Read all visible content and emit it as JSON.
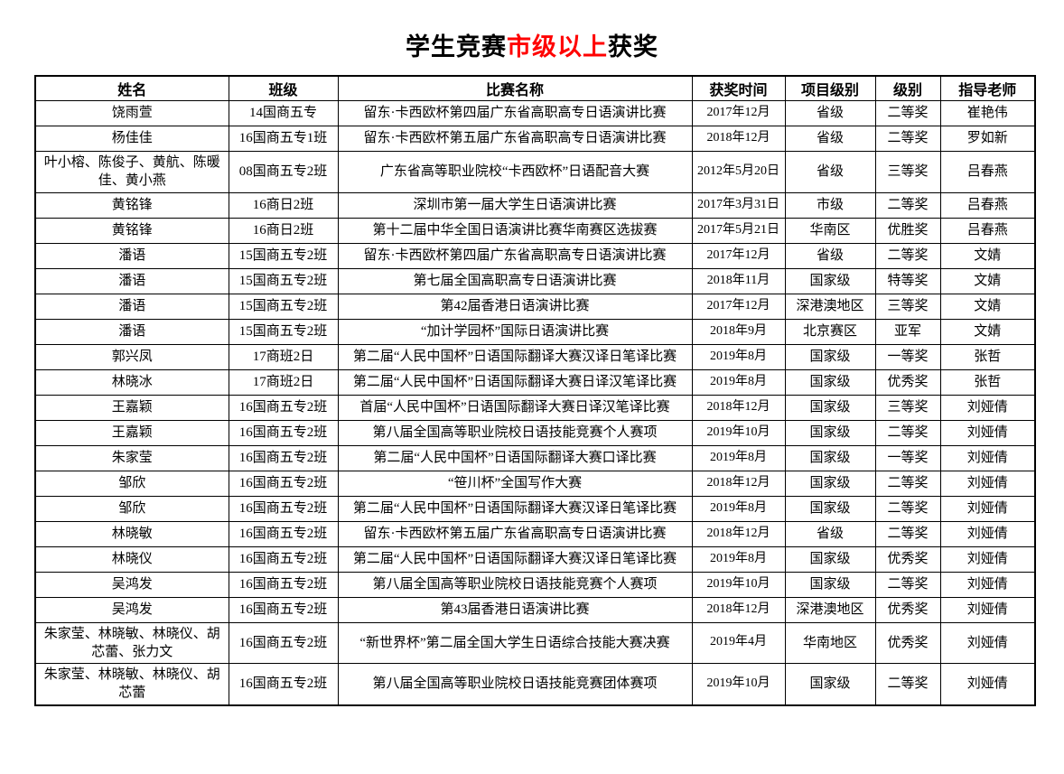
{
  "title": {
    "prefix": "学生竞赛",
    "highlight": "市级以上",
    "suffix": "获奖",
    "highlight_color": "#ff0000"
  },
  "table": {
    "headers": [
      "姓名",
      "班级",
      "比赛名称",
      "获奖时间",
      "项目级别",
      "级别",
      "指导老师"
    ],
    "column_keys": [
      "name",
      "class",
      "competition",
      "date",
      "project-level",
      "award",
      "advisor"
    ],
    "rows": [
      [
        "饶雨萱",
        "14国商五专",
        "留东·卡西欧杯第四届广东省高职高专日语演讲比赛",
        "2017年12月",
        "省级",
        "二等奖",
        "崔艳伟"
      ],
      [
        "杨佳佳",
        "16国商五专1班",
        "留东·卡西欧杯第五届广东省高职高专日语演讲比赛",
        "2018年12月",
        "省级",
        "二等奖",
        "罗如新"
      ],
      [
        "叶小榕、陈俊子、黄航、陈暖佳、黄小燕",
        "08国商五专2班",
        "广东省高等职业院校“卡西欧杯”日语配音大赛",
        "2012年5月20日",
        "省级",
        "三等奖",
        "吕春燕"
      ],
      [
        "黄铭锋",
        "16商日2班",
        "深圳市第一届大学生日语演讲比赛",
        "2017年3月31日",
        "市级",
        "二等奖",
        "吕春燕"
      ],
      [
        "黄铭锋",
        "16商日2班",
        "第十二届中华全国日语演讲比赛华南赛区选拔赛",
        "2017年5月21日",
        "华南区",
        "优胜奖",
        "吕春燕"
      ],
      [
        "潘语",
        "15国商五专2班",
        "留东·卡西欧杯第四届广东省高职高专日语演讲比赛",
        "2017年12月",
        "省级",
        "二等奖",
        "文婧"
      ],
      [
        "潘语",
        "15国商五专2班",
        "第七届全国高职高专日语演讲比赛",
        "2018年11月",
        "国家级",
        "特等奖",
        "文婧"
      ],
      [
        "潘语",
        "15国商五专2班",
        "第42届香港日语演讲比赛",
        "2017年12月",
        "深港澳地区",
        "三等奖",
        "文婧"
      ],
      [
        "潘语",
        "15国商五专2班",
        "“加计学园杯”国际日语演讲比赛",
        "2018年9月",
        "北京赛区",
        "亚军",
        "文婧"
      ],
      [
        "郭兴凤",
        "17商班2日",
        "第二届“人民中国杯”日语国际翻译大赛汉译日笔译比赛",
        "2019年8月",
        "国家级",
        "一等奖",
        "张哲"
      ],
      [
        "林晓冰",
        "17商班2日",
        "第二届“人民中国杯”日语国际翻译大赛日译汉笔译比赛",
        "2019年8月",
        "国家级",
        "优秀奖",
        "张哲"
      ],
      [
        "王嘉颖",
        "16国商五专2班",
        "首届“人民中国杯”日语国际翻译大赛日译汉笔译比赛",
        "2018年12月",
        "国家级",
        "三等奖",
        "刘娅倩"
      ],
      [
        "王嘉颖",
        "16国商五专2班",
        "第八届全国高等职业院校日语技能竞赛个人赛项",
        "2019年10月",
        "国家级",
        "二等奖",
        "刘娅倩"
      ],
      [
        "朱家莹",
        "16国商五专2班",
        "第二届“人民中国杯”日语国际翻译大赛口译比赛",
        "2019年8月",
        "国家级",
        "一等奖",
        "刘娅倩"
      ],
      [
        "邹欣",
        "16国商五专2班",
        "“笹川杯”全国写作大赛",
        "2018年12月",
        "国家级",
        "二等奖",
        "刘娅倩"
      ],
      [
        "邹欣",
        "16国商五专2班",
        "第二届“人民中国杯”日语国际翻译大赛汉译日笔译比赛",
        "2019年8月",
        "国家级",
        "二等奖",
        "刘娅倩"
      ],
      [
        "林晓敏",
        "16国商五专2班",
        "留东·卡西欧杯第五届广东省高职高专日语演讲比赛",
        "2018年12月",
        "省级",
        "二等奖",
        "刘娅倩"
      ],
      [
        "林晓仪",
        "16国商五专2班",
        "第二届“人民中国杯”日语国际翻译大赛汉译日笔译比赛",
        "2019年8月",
        "国家级",
        "优秀奖",
        "刘娅倩"
      ],
      [
        "吴鸿发",
        "16国商五专2班",
        "第八届全国高等职业院校日语技能竞赛个人赛项",
        "2019年10月",
        "国家级",
        "二等奖",
        "刘娅倩"
      ],
      [
        "吴鸿发",
        "16国商五专2班",
        "第43届香港日语演讲比赛",
        "2018年12月",
        "深港澳地区",
        "优秀奖",
        "刘娅倩"
      ],
      [
        "朱家莹、林晓敏、林晓仪、胡芯蕾、张力文",
        "16国商五专2班",
        "“新世界杯”第二届全国大学生日语综合技能大赛决赛",
        "2019年4月",
        "华南地区",
        "优秀奖",
        "刘娅倩"
      ],
      [
        "朱家莹、林晓敏、林晓仪、胡芯蕾",
        "16国商五专2班",
        "第八届全国高等职业院校日语技能竞赛团体赛项",
        "2019年10月",
        "国家级",
        "二等奖",
        "刘娅倩"
      ]
    ]
  }
}
